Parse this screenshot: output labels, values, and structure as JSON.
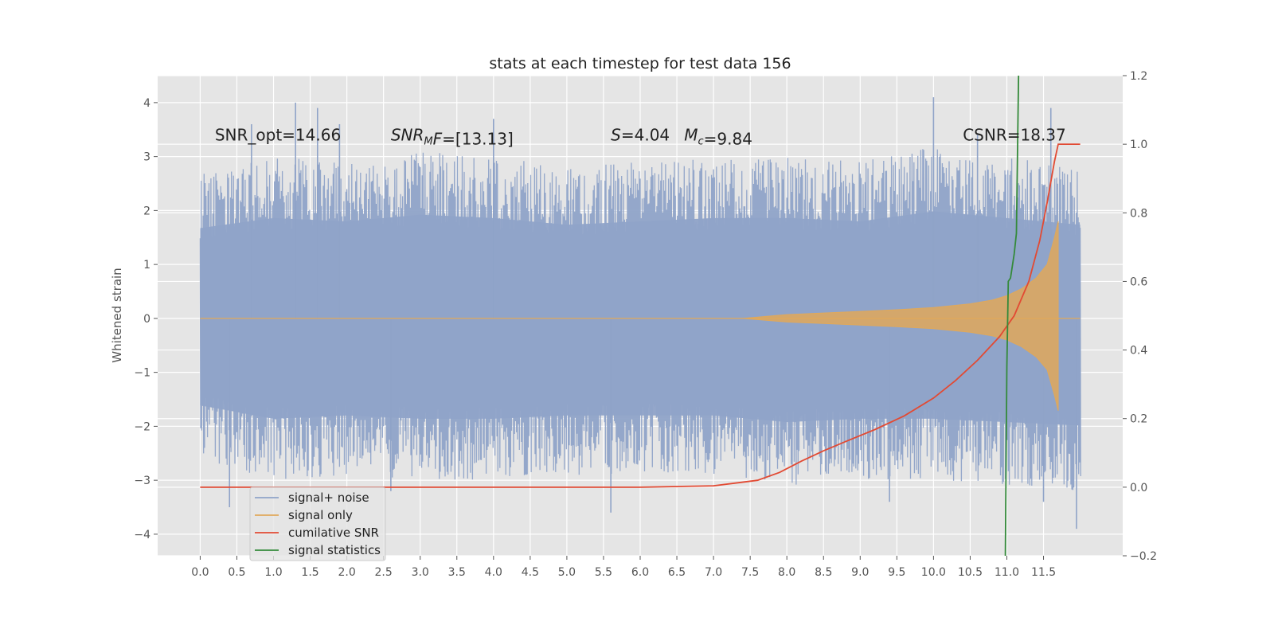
{
  "chart_data": {
    "type": "line",
    "title": "stats at each timestep for test data 156",
    "ylabel": "Whitened strain",
    "xlim": [
      -0.58,
      12.58
    ],
    "ylim": [
      -4.4,
      4.5
    ],
    "y2lim": [
      -0.2,
      1.2
    ],
    "grid": true,
    "x_ticks": [
      0.0,
      0.5,
      1.0,
      1.5,
      2.0,
      2.5,
      3.0,
      3.5,
      4.0,
      4.5,
      5.0,
      5.5,
      6.0,
      6.5,
      7.0,
      7.5,
      8.0,
      8.5,
      9.0,
      9.5,
      10.0,
      10.5,
      11.0,
      11.5
    ],
    "x_tick_labels": [
      "0.0",
      "0.5",
      "1.0",
      "1.5",
      "2.0",
      "2.5",
      "3.0",
      "3.5",
      "4.0",
      "4.5",
      "5.0",
      "5.5",
      "6.0",
      "6.5",
      "7.0",
      "7.5",
      "8.0",
      "8.5",
      "9.0",
      "9.5",
      "10.0",
      "10.5",
      "11.0",
      "11.5"
    ],
    "y_ticks": [
      4,
      3,
      2,
      1,
      0,
      -1,
      -2,
      -3,
      -4
    ],
    "y_tick_labels": [
      "4",
      "3",
      "2",
      "1",
      "0",
      "−1",
      "−2",
      "−3",
      "−4"
    ],
    "y2_ticks": [
      1.2,
      1.0,
      0.8,
      0.6,
      0.4,
      0.2,
      0.0,
      -0.2
    ],
    "y2_tick_labels": [
      "1.2",
      "1.0",
      "0.8",
      "0.6",
      "0.4",
      "0.2",
      "0.0",
      "−0.2"
    ],
    "legend_position": "lower-left",
    "series": [
      {
        "name": "signal+ noise",
        "color": "#8fa3c8",
        "axis": "left",
        "envelope": {
          "x": [
            0.0,
            1.0,
            2.0,
            3.0,
            4.0,
            5.0,
            6.0,
            7.0,
            8.0,
            9.0,
            10.0,
            11.0,
            12.0
          ],
          "upper": [
            2.7,
            3.0,
            2.9,
            3.1,
            3.0,
            2.8,
            2.9,
            3.0,
            3.0,
            2.9,
            3.2,
            3.0,
            2.8
          ],
          "lower": [
            -2.6,
            -3.0,
            -2.9,
            -3.0,
            -3.0,
            -2.9,
            -2.9,
            -2.9,
            -3.1,
            -3.0,
            -3.0,
            -3.1,
            -3.2
          ]
        },
        "peaks": [
          {
            "x": 0.7,
            "y": 3.6
          },
          {
            "x": 1.3,
            "y": 4.0
          },
          {
            "x": 1.6,
            "y": 3.9
          },
          {
            "x": 1.9,
            "y": 3.6
          },
          {
            "x": 4.0,
            "y": 3.7
          },
          {
            "x": 10.0,
            "y": 4.1
          },
          {
            "x": 10.6,
            "y": 3.4
          },
          {
            "x": 11.6,
            "y": 3.9
          },
          {
            "x": 0.4,
            "y": -3.5
          },
          {
            "x": 2.6,
            "y": -3.2
          },
          {
            "x": 5.6,
            "y": -3.6
          },
          {
            "x": 9.4,
            "y": -3.4
          },
          {
            "x": 11.5,
            "y": -3.4
          },
          {
            "x": 11.95,
            "y": -3.9
          }
        ]
      },
      {
        "name": "signal only",
        "color": "#e0a85a",
        "axis": "left",
        "envelope": {
          "x": [
            7.4,
            8.0,
            8.5,
            9.0,
            9.5,
            10.0,
            10.5,
            10.8,
            11.0,
            11.2,
            11.4,
            11.55,
            11.65,
            11.7
          ],
          "amplitude": [
            0.0,
            0.07,
            0.1,
            0.13,
            0.16,
            0.2,
            0.27,
            0.34,
            0.42,
            0.55,
            0.75,
            1.0,
            1.5,
            1.8
          ]
        }
      },
      {
        "name": "cumilative SNR",
        "color": "#e24a33",
        "axis": "right",
        "x": [
          0.0,
          5.0,
          6.0,
          6.5,
          7.0,
          7.3,
          7.6,
          7.9,
          8.2,
          8.5,
          8.8,
          9.2,
          9.6,
          10.0,
          10.3,
          10.6,
          10.9,
          11.1,
          11.3,
          11.45,
          11.55,
          11.65,
          11.7,
          12.0
        ],
        "y": [
          0.0,
          0.0,
          0.0,
          0.002,
          0.004,
          0.012,
          0.02,
          0.043,
          0.076,
          0.106,
          0.133,
          0.168,
          0.208,
          0.26,
          0.311,
          0.37,
          0.439,
          0.5,
          0.6,
          0.72,
          0.83,
          0.95,
          1.0,
          1.0
        ]
      },
      {
        "name": "signal statistics",
        "color": "#348a3a",
        "axis": "right",
        "x": [
          10.98,
          11.0,
          11.02,
          11.05,
          11.1,
          11.13,
          11.16
        ],
        "y": [
          -0.2,
          0.35,
          0.6,
          0.61,
          0.68,
          0.74,
          1.2
        ]
      }
    ],
    "annotations": [
      {
        "text": "SNR_opt=14.66",
        "x": 0.2,
        "y": 3.3
      },
      {
        "text": "SNRMF=[13.13]",
        "math_base": "SNR",
        "math_sub": "M",
        "math_after": "F",
        "value": "=[13.13]",
        "x": 2.6,
        "y": 3.3
      },
      {
        "text": "S=4.04",
        "math_base": "S",
        "value": "=4.04",
        "x": 5.6,
        "y": 3.3
      },
      {
        "text": "Mc=9.84",
        "math_base": "M",
        "math_sub": "c",
        "value": "=9.84",
        "x": 6.6,
        "y": 3.3
      },
      {
        "text": "CSNR=18.37",
        "x": 10.4,
        "y": 3.3
      }
    ]
  }
}
